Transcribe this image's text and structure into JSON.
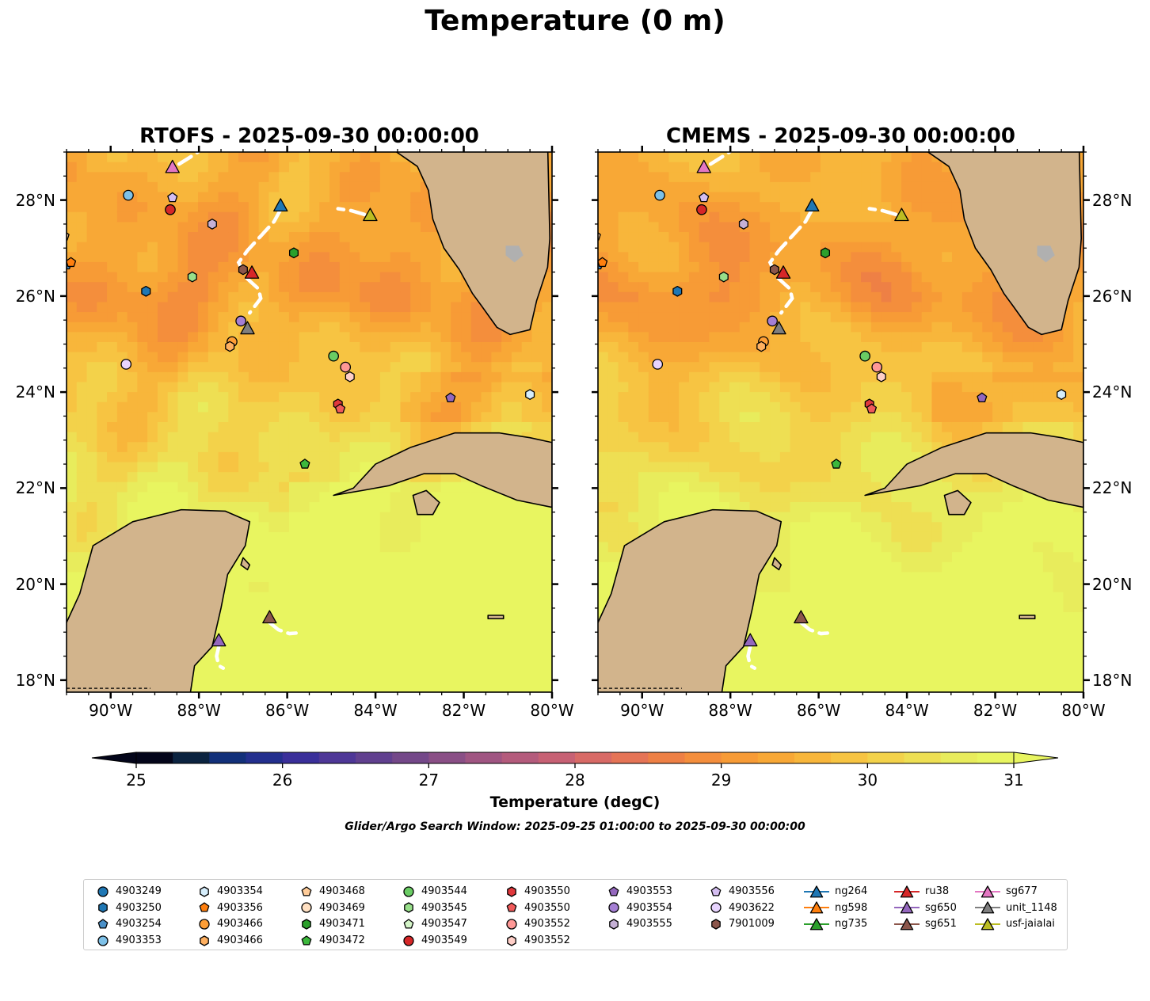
{
  "chart_data": {
    "type": "map",
    "title": "Temperature (0 m)",
    "note": "Glider/Argo Search Window: 2025-09-25 01:00:00 to 2025-09-30 00:00:00",
    "extent": {
      "lon": [
        -91.0,
        -80.0
      ],
      "lat": [
        17.75,
        29.0
      ]
    },
    "x_ticks": [
      {
        "lon": -90,
        "label": "90°W"
      },
      {
        "lon": -88,
        "label": "88°W"
      },
      {
        "lon": -86,
        "label": "86°W"
      },
      {
        "lon": -84,
        "label": "84°W"
      },
      {
        "lon": -82,
        "label": "82°W"
      },
      {
        "lon": -80,
        "label": "80°W"
      }
    ],
    "y_ticks": [
      {
        "lat": 28,
        "label": "28°N"
      },
      {
        "lat": 26,
        "label": "26°N"
      },
      {
        "lat": 24,
        "label": "24°N"
      },
      {
        "lat": 22,
        "label": "22°N"
      },
      {
        "lat": 20,
        "label": "20°N"
      },
      {
        "lat": 18,
        "label": "18°N"
      }
    ],
    "panels": [
      {
        "title": "RTOFS - 2025-09-30 00:00:00",
        "side": "left"
      },
      {
        "title": "CMEMS - 2025-09-30 00:00:00",
        "side": "right"
      }
    ],
    "colorbar": {
      "label": "Temperature (degC)",
      "min": 25,
      "max": 31,
      "step": 0.25,
      "ticks": [
        {
          "value": 25,
          "label": "25"
        },
        {
          "value": 26,
          "label": "26"
        },
        {
          "value": 27,
          "label": "27"
        },
        {
          "value": 28,
          "label": "28"
        },
        {
          "value": 29,
          "label": "29"
        },
        {
          "value": 30,
          "label": "30"
        },
        {
          "value": 31,
          "label": "31"
        }
      ],
      "colors": [
        "#03051a",
        "#0b2340",
        "#12307a",
        "#232f8e",
        "#3a2f9a",
        "#4e3797",
        "#61408f",
        "#744889",
        "#8a4f86",
        "#a05582",
        "#b45b7c",
        "#c76174",
        "#d86a66",
        "#e57456",
        "#ee8045",
        "#f48e3c",
        "#f79b36",
        "#f8a836",
        "#f8b63b",
        "#f7c442",
        "#f3d24a",
        "#eedf53",
        "#e8ec5c",
        "#e8f560"
      ],
      "under_color": "#03051a",
      "over_color": "#e8f560"
    },
    "colors": {
      "land": "#d2b48c",
      "lake": "#9fc0e8",
      "track": "#ffffff"
    },
    "argo": [
      {
        "id": "4903249",
        "marker": "o",
        "color": "#1f77b4",
        "lon": -90.2,
        "lat": 28.4,
        "hidden": true
      },
      {
        "id": "4903250",
        "marker": "h",
        "color": "#1f77b4",
        "lon": -89.2,
        "lat": 26.1
      },
      {
        "id": "4903254",
        "marker": "p",
        "color": "#4a90c8",
        "lon": -91.0,
        "lat": 26.65
      },
      {
        "id": "4903353",
        "marker": "o",
        "color": "#7ec1e8",
        "lon": -89.6,
        "lat": 28.1
      },
      {
        "id": "4903354",
        "marker": "h",
        "color": "#d6eefc",
        "lon": -80.5,
        "lat": 23.95
      },
      {
        "id": "4903356",
        "marker": "p",
        "color": "#ff7f0e",
        "lon": -90.9,
        "lat": 26.7
      },
      {
        "id": "4903466",
        "marker": "o",
        "color": "#ff9e35",
        "lon": -87.25,
        "lat": 25.05
      },
      {
        "id": "4903466",
        "marker": "h",
        "color": "#ffb060",
        "lon": -87.3,
        "lat": 24.95
      },
      {
        "id": "4903468",
        "marker": "p",
        "color": "#ffcc99",
        "lon": -91.05,
        "lat": 27.25
      },
      {
        "id": "4903469",
        "marker": "o",
        "color": "#ffe0c2",
        "lon": -91.1,
        "lat": 26.3,
        "hidden": true
      },
      {
        "id": "4903471",
        "marker": "h",
        "color": "#2ca02c",
        "lon": -85.85,
        "lat": 26.9
      },
      {
        "id": "4903472",
        "marker": "p",
        "color": "#3cb83c",
        "lon": -85.6,
        "lat": 22.5
      },
      {
        "id": "4903544",
        "marker": "o",
        "color": "#6acc64",
        "lon": -84.95,
        "lat": 24.75
      },
      {
        "id": "4903545",
        "marker": "h",
        "color": "#98df8a",
        "lon": -88.15,
        "lat": 26.4
      },
      {
        "id": "4903547",
        "marker": "p",
        "color": "#d4f5c8",
        "lon": -90.6,
        "lat": 28.8,
        "hidden": true
      },
      {
        "id": "4903549",
        "marker": "o",
        "color": "#d62728",
        "lon": -88.65,
        "lat": 27.8
      },
      {
        "id": "4903550",
        "marker": "h",
        "color": "#e0383c",
        "lon": -84.85,
        "lat": 23.75
      },
      {
        "id": "4903550",
        "marker": "p",
        "color": "#f05a5a",
        "lon": -84.8,
        "lat": 23.65
      },
      {
        "id": "4903552",
        "marker": "o",
        "color": "#ff9896",
        "lon": -84.68,
        "lat": 24.52
      },
      {
        "id": "4903552",
        "marker": "h",
        "color": "#ffcfc8",
        "lon": -84.58,
        "lat": 24.32
      },
      {
        "id": "4903553",
        "marker": "p",
        "color": "#9467bd",
        "lon": -82.3,
        "lat": 23.88
      },
      {
        "id": "4903554",
        "marker": "o",
        "color": "#a57fd4",
        "lon": -87.05,
        "lat": 25.48
      },
      {
        "id": "4903555",
        "marker": "h",
        "color": "#c5b0d5",
        "lon": -87.7,
        "lat": 27.5
      },
      {
        "id": "4903556",
        "marker": "p",
        "color": "#d4bdf0",
        "lon": -88.6,
        "lat": 28.05
      },
      {
        "id": "4903622",
        "marker": "o",
        "color": "#e8d4ff",
        "lon": -89.65,
        "lat": 24.58
      },
      {
        "id": "7901009",
        "marker": "h",
        "color": "#8c564b",
        "lon": -87.0,
        "lat": 26.55
      }
    ],
    "gliders": [
      {
        "id": "ng264",
        "color": "#1f77b4",
        "lon": -86.15,
        "lat": 27.88,
        "track": [
          [
            -86.15,
            27.8
          ],
          [
            -86.3,
            27.55
          ],
          [
            -86.6,
            27.25
          ],
          [
            -86.9,
            26.95
          ],
          [
            -87.1,
            26.7
          ],
          [
            -86.95,
            26.4
          ],
          [
            -86.65,
            26.15
          ],
          [
            -86.6,
            25.95
          ],
          [
            -86.85,
            25.65
          ]
        ]
      },
      {
        "id": "ng598",
        "color": "#ff7f0e",
        "lon": -91.5,
        "lat": 26.0,
        "hidden": true,
        "track": []
      },
      {
        "id": "ng735",
        "color": "#2ca02c",
        "lon": -91.5,
        "lat": 25.0,
        "hidden": true,
        "track": []
      },
      {
        "id": "ru38",
        "color": "#d62728",
        "lon": -86.8,
        "lat": 26.48,
        "track": []
      },
      {
        "id": "sg650",
        "color": "#9467bd",
        "lon": -87.55,
        "lat": 18.82,
        "track": [
          [
            -87.55,
            18.7
          ],
          [
            -87.6,
            18.5
          ],
          [
            -87.55,
            18.3
          ],
          [
            -87.45,
            18.25
          ]
        ]
      },
      {
        "id": "sg651",
        "color": "#8c564b",
        "lon": -86.4,
        "lat": 19.3,
        "track": [
          [
            -86.4,
            19.2
          ],
          [
            -86.2,
            19.05
          ],
          [
            -85.95,
            18.97
          ],
          [
            -85.8,
            18.98
          ]
        ]
      },
      {
        "id": "sg677",
        "color": "#e377c2",
        "lon": -88.6,
        "lat": 28.68,
        "track": [
          [
            -88.45,
            28.75
          ],
          [
            -88.1,
            28.95
          ],
          [
            -87.95,
            29.05
          ]
        ]
      },
      {
        "id": "unit_1148",
        "color": "#7f7f7f",
        "lon": -86.9,
        "lat": 25.32,
        "track": []
      },
      {
        "id": "usf-jaialai",
        "color": "#bcbd22",
        "lon": -84.12,
        "lat": 27.68,
        "track": [
          [
            -84.25,
            27.7
          ],
          [
            -84.55,
            27.78
          ],
          [
            -84.85,
            27.82
          ]
        ]
      }
    ],
    "legend": {
      "columns": [
        [
          {
            "label": "4903249",
            "marker": "o",
            "color": "#1f77b4"
          },
          {
            "label": "4903250",
            "marker": "h",
            "color": "#1f77b4"
          },
          {
            "label": "4903254",
            "marker": "p",
            "color": "#4a90c8"
          },
          {
            "label": "4903353",
            "marker": "o",
            "color": "#7ec1e8"
          }
        ],
        [
          {
            "label": "4903354",
            "marker": "h",
            "color": "#d6eefc"
          },
          {
            "label": "4903356",
            "marker": "p",
            "color": "#ff7f0e"
          },
          {
            "label": "4903466",
            "marker": "o",
            "color": "#ff9e35"
          },
          {
            "label": "4903466",
            "marker": "h",
            "color": "#ffb060"
          }
        ],
        [
          {
            "label": "4903468",
            "marker": "p",
            "color": "#ffcc99"
          },
          {
            "label": "4903469",
            "marker": "o",
            "color": "#ffe0c2"
          },
          {
            "label": "4903471",
            "marker": "h",
            "color": "#2ca02c"
          },
          {
            "label": "4903472",
            "marker": "p",
            "color": "#3cb83c"
          }
        ],
        [
          {
            "label": "4903544",
            "marker": "o",
            "color": "#6acc64"
          },
          {
            "label": "4903545",
            "marker": "h",
            "color": "#98df8a"
          },
          {
            "label": "4903547",
            "marker": "p",
            "color": "#d4f5c8"
          },
          {
            "label": "4903549",
            "marker": "o",
            "color": "#d62728"
          }
        ],
        [
          {
            "label": "4903550",
            "marker": "h",
            "color": "#e0383c"
          },
          {
            "label": "4903550",
            "marker": "p",
            "color": "#f05a5a"
          },
          {
            "label": "4903552",
            "marker": "o",
            "color": "#ff9896"
          },
          {
            "label": "4903552",
            "marker": "h",
            "color": "#ffcfc8"
          }
        ],
        [
          {
            "label": "4903553",
            "marker": "p",
            "color": "#9467bd"
          },
          {
            "label": "4903554",
            "marker": "o",
            "color": "#a57fd4"
          },
          {
            "label": "4903555",
            "marker": "h",
            "color": "#c5b0d5"
          }
        ],
        [
          {
            "label": "4903556",
            "marker": "p",
            "color": "#d4bdf0"
          },
          {
            "label": "4903622",
            "marker": "o",
            "color": "#e8d4ff"
          },
          {
            "label": "7901009",
            "marker": "h",
            "color": "#8c564b"
          }
        ],
        [
          {
            "label": "ng264",
            "marker": "^",
            "color": "#1f77b4"
          },
          {
            "label": "ng598",
            "marker": "^",
            "color": "#ff7f0e"
          },
          {
            "label": "ng735",
            "marker": "^",
            "color": "#2ca02c"
          }
        ],
        [
          {
            "label": "ru38",
            "marker": "^",
            "color": "#d62728"
          },
          {
            "label": "sg650",
            "marker": "^",
            "color": "#9467bd"
          },
          {
            "label": "sg651",
            "marker": "^",
            "color": "#8c564b"
          }
        ],
        [
          {
            "label": "sg677",
            "marker": "^",
            "color": "#e377c2"
          },
          {
            "label": "unit_1148",
            "marker": "^",
            "color": "#7f7f7f"
          },
          {
            "label": "usf-jaialai",
            "marker": "^",
            "color": "#bcbd22"
          }
        ]
      ]
    }
  }
}
